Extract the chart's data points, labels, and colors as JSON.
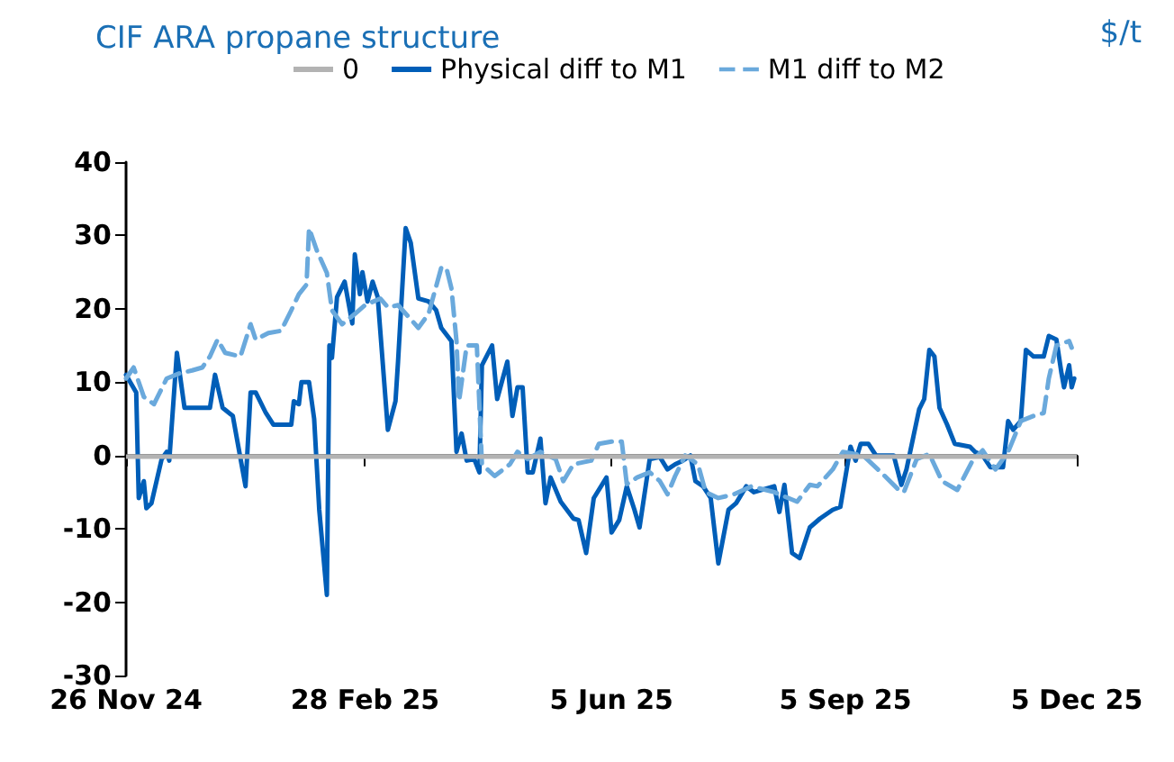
{
  "chart_data": {
    "type": "line",
    "title": "CIF ARA propane structure",
    "ylabel": "$/t",
    "xlim": [
      "2024-11-26",
      "2025-12-05"
    ],
    "xticks": [
      {
        "value": "2024-11-26",
        "label": "26 Nov 24"
      },
      {
        "value": "2025-02-28",
        "label": "28 Feb 25"
      },
      {
        "value": "2025-06-05",
        "label": "5 Jun 25"
      },
      {
        "value": "2025-09-05",
        "label": "5 Sep 25"
      },
      {
        "value": "2025-12-05",
        "label": "5 Dec 25"
      }
    ],
    "ylim": [
      -30,
      40
    ],
    "yticks": [
      -30,
      -20,
      -10,
      0,
      10,
      20,
      30,
      40
    ],
    "grid": false,
    "legend": "top",
    "marker": "none",
    "ref_lines": [
      {
        "axis": "y",
        "value": 0,
        "label": "0",
        "color": "#b3b3b3",
        "line_style": "solid"
      }
    ],
    "series": [
      {
        "name": "Physical diff to M1",
        "color": "#005eb8",
        "line_style": "solid",
        "x": [
          "2024-11-26",
          "2024-11-30",
          "2024-12-01",
          "2024-12-03",
          "2024-12-04",
          "2024-12-06",
          "2024-12-10",
          "2024-12-12",
          "2024-12-13",
          "2024-12-16",
          "2024-12-19",
          "2024-12-29",
          "2024-12-31",
          "2025-01-03",
          "2025-01-07",
          "2025-01-12",
          "2025-01-14",
          "2025-01-16",
          "2025-01-20",
          "2025-01-23",
          "2025-01-30",
          "2025-01-31",
          "2025-02-02",
          "2025-02-03",
          "2025-02-06",
          "2025-02-08",
          "2025-02-10",
          "2025-02-13",
          "2025-02-14",
          "2025-02-15",
          "2025-02-17",
          "2025-02-20",
          "2025-02-23",
          "2025-02-24",
          "2025-02-26",
          "2025-02-27",
          "2025-03-01",
          "2025-03-03",
          "2025-03-05",
          "2025-03-09",
          "2025-03-12",
          "2025-03-13",
          "2025-03-16",
          "2025-03-18",
          "2025-03-21",
          "2025-03-25",
          "2025-03-28",
          "2025-03-30",
          "2025-04-03",
          "2025-04-05",
          "2025-04-07",
          "2025-04-09",
          "2025-04-12",
          "2025-04-14",
          "2025-04-15",
          "2025-04-19",
          "2025-04-21",
          "2025-04-25",
          "2025-04-27",
          "2025-04-29",
          "2025-05-01",
          "2025-05-03",
          "2025-05-05",
          "2025-05-08",
          "2025-05-10",
          "2025-05-12",
          "2025-05-16",
          "2025-05-21",
          "2025-05-23",
          "2025-05-26",
          "2025-05-29",
          "2025-06-03",
          "2025-06-05",
          "2025-06-08",
          "2025-06-11",
          "2025-06-14",
          "2025-06-16",
          "2025-06-20",
          "2025-06-24",
          "2025-06-27",
          "2025-06-30",
          "2025-07-03",
          "2025-07-06",
          "2025-07-08",
          "2025-07-11",
          "2025-07-14",
          "2025-07-17",
          "2025-07-21",
          "2025-07-24",
          "2025-07-28",
          "2025-07-31",
          "2025-08-08",
          "2025-08-10",
          "2025-08-12",
          "2025-08-15",
          "2025-08-18",
          "2025-08-22",
          "2025-08-26",
          "2025-08-31",
          "2025-09-03",
          "2025-09-07",
          "2025-09-09",
          "2025-09-11",
          "2025-09-14",
          "2025-09-17",
          "2025-09-24",
          "2025-09-27",
          "2025-09-29",
          "2025-10-04",
          "2025-10-06",
          "2025-10-08",
          "2025-10-10",
          "2025-10-12",
          "2025-10-15",
          "2025-10-18",
          "2025-10-24",
          "2025-10-26",
          "2025-10-29",
          "2025-11-01",
          "2025-11-06",
          "2025-11-08",
          "2025-11-10",
          "2025-11-13",
          "2025-11-15",
          "2025-11-18",
          "2025-11-22",
          "2025-11-24",
          "2025-11-27",
          "2025-11-29",
          "2025-11-30",
          "2025-12-02",
          "2025-12-03",
          "2025-12-04"
        ],
        "values": [
          11,
          8.6,
          -5.8,
          -3.5,
          -7.2,
          -6.5,
          -0.5,
          0.5,
          -0.7,
          14,
          6.5,
          6.5,
          11,
          6.5,
          5.4,
          -4.2,
          8.6,
          8.6,
          5.8,
          4.2,
          4.2,
          7.4,
          7,
          10,
          10,
          5,
          -7.4,
          -19,
          15,
          13.3,
          21.6,
          23.7,
          18,
          27.4,
          22,
          25,
          21,
          23.7,
          21.6,
          3.5,
          7.4,
          12.8,
          31,
          29,
          21.4,
          21,
          19.8,
          17.4,
          15.6,
          0.5,
          3,
          -0.7,
          -0.5,
          -2.3,
          12.3,
          15,
          7.7,
          12.8,
          5.4,
          9.3,
          9.3,
          -2.3,
          -2.3,
          2.3,
          -6.5,
          -3,
          -6.3,
          -8.6,
          -8.8,
          -13.3,
          -5.8,
          -3,
          -10.5,
          -8.8,
          -4.2,
          -7.4,
          -9.8,
          -0.5,
          -0.2,
          -1.9,
          -1.2,
          -0.7,
          0,
          -3.5,
          -4.2,
          -5.8,
          -14.7,
          -7.4,
          -6.5,
          -4.2,
          -5,
          -4.2,
          -7.7,
          -4,
          -13.3,
          -14,
          -9.8,
          -8.6,
          -7.4,
          -7,
          1.2,
          -0.7,
          1.6,
          1.6,
          0,
          0,
          -4,
          -1.9,
          6.3,
          7.7,
          14.4,
          13.5,
          6.5,
          4.2,
          1.6,
          1.2,
          0.5,
          0,
          -1.6,
          -1.6,
          4.7,
          3.5,
          4.7,
          14.4,
          13.5,
          13.5,
          16.3,
          15.8,
          11.2,
          9.3,
          12.3,
          9.3,
          10.5
        ]
      },
      {
        "name": "M1 diff to M2",
        "color": "#6aa9dc",
        "line_style": "dashed",
        "x": [
          "2024-11-26",
          "2024-11-29",
          "2024-12-03",
          "2024-12-07",
          "2024-12-12",
          "2024-12-17",
          "2024-12-22",
          "2024-12-26",
          "2024-12-29",
          "2025-01-01",
          "2025-01-04",
          "2025-01-10",
          "2025-01-14",
          "2025-01-16",
          "2025-01-21",
          "2025-01-26",
          "2025-01-30",
          "2025-02-02",
          "2025-02-05",
          "2025-02-06",
          "2025-02-09",
          "2025-02-13",
          "2025-02-15",
          "2025-02-19",
          "2025-02-24",
          "2025-02-28",
          "2025-03-06",
          "2025-03-09",
          "2025-03-13",
          "2025-03-21",
          "2025-03-25",
          "2025-03-30",
          "2025-04-01",
          "2025-04-03",
          "2025-04-05",
          "2025-04-06",
          "2025-04-09",
          "2025-04-13",
          "2025-04-15",
          "2025-04-20",
          "2025-04-26",
          "2025-04-29",
          "2025-05-03",
          "2025-05-08",
          "2025-05-14",
          "2025-05-17",
          "2025-05-21",
          "2025-05-28",
          "2025-05-31",
          "2025-06-05",
          "2025-06-09",
          "2025-06-11",
          "2025-06-15",
          "2025-06-20",
          "2025-06-24",
          "2025-06-27",
          "2025-06-30",
          "2025-07-04",
          "2025-07-09",
          "2025-07-12",
          "2025-07-17",
          "2025-07-23",
          "2025-07-30",
          "2025-08-08",
          "2025-08-17",
          "2025-08-22",
          "2025-08-25",
          "2025-08-31",
          "2025-09-04",
          "2025-09-12",
          "2025-09-19",
          "2025-09-26",
          "2025-09-28",
          "2025-10-03",
          "2025-10-08",
          "2025-10-13",
          "2025-10-19",
          "2025-10-25",
          "2025-10-29",
          "2025-11-03",
          "2025-11-08",
          "2025-11-13",
          "2025-11-18",
          "2025-11-22",
          "2025-11-24",
          "2025-11-27",
          "2025-12-02",
          "2025-12-03"
        ],
        "values": [
          10.5,
          12,
          8,
          7,
          10.5,
          11.2,
          11.6,
          12,
          13.5,
          15.8,
          14,
          13.5,
          17.9,
          15.8,
          16.7,
          17,
          19.8,
          22,
          23.3,
          31,
          28,
          24.9,
          19.8,
          17.9,
          19.3,
          20.5,
          21.4,
          20.2,
          20.5,
          17.4,
          19.3,
          25.6,
          25.6,
          22.8,
          15.6,
          7.4,
          15,
          15,
          -1.2,
          -2.8,
          -1.2,
          0.5,
          -0.5,
          0.5,
          -0.5,
          -3.5,
          -1.2,
          -0.7,
          1.6,
          1.9,
          1.9,
          -3.9,
          -3,
          -2.3,
          -3.5,
          -5.3,
          -2.8,
          0,
          -1.2,
          -5,
          -5.8,
          -5.3,
          -4.2,
          -5,
          -6.3,
          -4,
          -4.2,
          -1.9,
          0.5,
          0,
          -2.3,
          -4.7,
          -5,
          -0.5,
          0.2,
          -3.5,
          -4.7,
          -0.7,
          0.7,
          -1.9,
          0.5,
          4.7,
          5.4,
          5.8,
          10.5,
          15,
          15.6,
          14.7
        ]
      }
    ]
  }
}
